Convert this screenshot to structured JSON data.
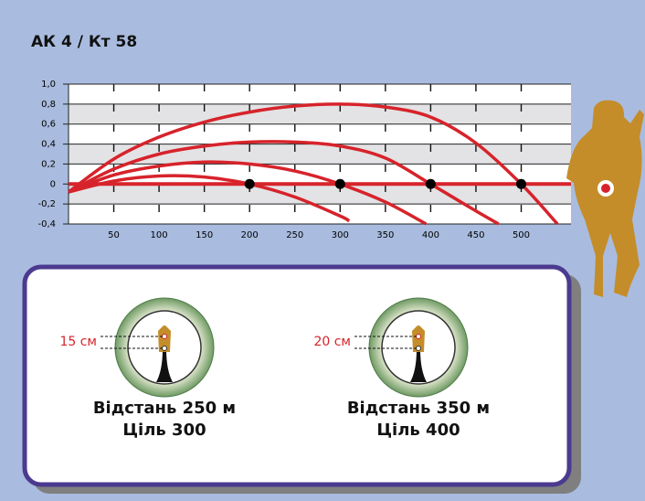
{
  "chart_data": {
    "type": "line",
    "title": "АК 4 / Кт 58",
    "xlim": [
      0,
      555
    ],
    "xticks": [
      50,
      100,
      150,
      200,
      250,
      300,
      350,
      400,
      450,
      500
    ],
    "ylim": [
      -0.4,
      1.0
    ],
    "yticks": [
      {
        "value": -0.4,
        "label": "-0,4"
      },
      {
        "value": -0.2,
        "label": "-0,2"
      },
      0,
      {
        "value": 0.2,
        "label": "0,2"
      },
      {
        "value": 0.4,
        "label": "0,4"
      },
      {
        "value": 0.6,
        "label": "0,6"
      },
      {
        "value": 0.8,
        "label": "0,8"
      },
      {
        "value": 1.0,
        "label": "1,0"
      }
    ],
    "grid": true,
    "series": [
      {
        "color": "#d7232b",
        "x": [
          0,
          50,
          100,
          150,
          200,
          250,
          300,
          310
        ],
        "values": [
          -0.08,
          0.03,
          0.08,
          0.07,
          0,
          -0.13,
          -0.32,
          -0.37
        ]
      },
      {
        "color": "#d7232b",
        "x": [
          0,
          50,
          100,
          150,
          200,
          250,
          300,
          350,
          395
        ],
        "values": [
          -0.08,
          0.09,
          0.18,
          0.22,
          0.2,
          0.13,
          0,
          -0.18,
          -0.4
        ]
      },
      {
        "color": "#d7232b",
        "x": [
          0,
          50,
          100,
          150,
          200,
          250,
          300,
          350,
          400,
          450,
          475
        ],
        "values": [
          -0.08,
          0.15,
          0.3,
          0.38,
          0.42,
          0.42,
          0.38,
          0.26,
          0,
          -0.27,
          -0.4
        ]
      },
      {
        "color": "#d7232b",
        "x": [
          0,
          50,
          100,
          150,
          200,
          250,
          300,
          350,
          400,
          450,
          500,
          540
        ],
        "values": [
          -0.08,
          0.25,
          0.47,
          0.62,
          0.72,
          0.78,
          0.8,
          0.77,
          0.67,
          0.41,
          0,
          -0.4
        ]
      }
    ]
  },
  "panel": {
    "scopes": [
      {
        "offset": "15 см",
        "lines": [
          "Відстань 250 м",
          "Ціль 300"
        ]
      },
      {
        "offset": "20 см",
        "lines": [
          "Відстань 350 м",
          "Ціль 400"
        ]
      }
    ]
  }
}
